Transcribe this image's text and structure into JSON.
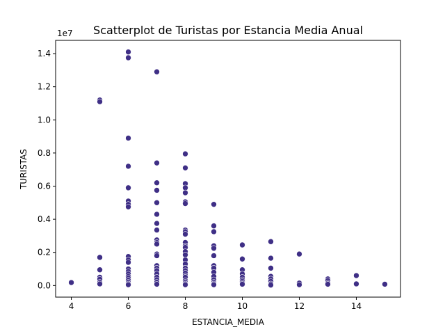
{
  "chart_data": {
    "type": "scatter",
    "title": "Scatterplot de Turistas por Estancia Media Anual",
    "xlabel": "ESTANCIA_MEDIA",
    "ylabel": "TURISTAS",
    "y_offset_label": "1e7",
    "xlim": [
      3.45,
      15.55
    ],
    "ylim": [
      -700000,
      14800000
    ],
    "x_ticks": [
      4,
      6,
      8,
      10,
      12,
      14
    ],
    "x_tick_labels": [
      "4",
      "6",
      "8",
      "10",
      "12",
      "14"
    ],
    "y_ticks": [
      0,
      2000000,
      4000000,
      6000000,
      8000000,
      10000000,
      12000000,
      14000000
    ],
    "y_tick_labels": [
      "0.0",
      "0.2",
      "0.4",
      "0.6",
      "0.8",
      "1.0",
      "1.2",
      "1.4"
    ],
    "grid": false,
    "marker_color": "#3f2f86",
    "marker_edge_color": "#ffffff",
    "points": [
      [
        4,
        180000
      ],
      [
        5,
        11200000
      ],
      [
        5,
        11100000
      ],
      [
        5,
        1700000
      ],
      [
        5,
        950000
      ],
      [
        5,
        500000
      ],
      [
        5,
        380000
      ],
      [
        5,
        200000
      ],
      [
        5,
        100000
      ],
      [
        6,
        14100000
      ],
      [
        6,
        13750000
      ],
      [
        6,
        8900000
      ],
      [
        6,
        7200000
      ],
      [
        6,
        5900000
      ],
      [
        6,
        5100000
      ],
      [
        6,
        4900000
      ],
      [
        6,
        4750000
      ],
      [
        6,
        1750000
      ],
      [
        6,
        1550000
      ],
      [
        6,
        1400000
      ],
      [
        6,
        1000000
      ],
      [
        6,
        850000
      ],
      [
        6,
        700000
      ],
      [
        6,
        550000
      ],
      [
        6,
        450000
      ],
      [
        6,
        320000
      ],
      [
        6,
        200000
      ],
      [
        6,
        100000
      ],
      [
        6,
        50000
      ],
      [
        7,
        12900000
      ],
      [
        7,
        7400000
      ],
      [
        7,
        6200000
      ],
      [
        7,
        5750000
      ],
      [
        7,
        5000000
      ],
      [
        7,
        4300000
      ],
      [
        7,
        3750000
      ],
      [
        7,
        3350000
      ],
      [
        7,
        2750000
      ],
      [
        7,
        2600000
      ],
      [
        7,
        2500000
      ],
      [
        7,
        1900000
      ],
      [
        7,
        1800000
      ],
      [
        7,
        1200000
      ],
      [
        7,
        1050000
      ],
      [
        7,
        900000
      ],
      [
        7,
        700000
      ],
      [
        7,
        500000
      ],
      [
        7,
        350000
      ],
      [
        7,
        200000
      ],
      [
        7,
        80000
      ],
      [
        8,
        7950000
      ],
      [
        8,
        7100000
      ],
      [
        8,
        6150000
      ],
      [
        8,
        5900000
      ],
      [
        8,
        5600000
      ],
      [
        8,
        5050000
      ],
      [
        8,
        4950000
      ],
      [
        8,
        3350000
      ],
      [
        8,
        3250000
      ],
      [
        8,
        3100000
      ],
      [
        8,
        2600000
      ],
      [
        8,
        2400000
      ],
      [
        8,
        2300000
      ],
      [
        8,
        2050000
      ],
      [
        8,
        1850000
      ],
      [
        8,
        1550000
      ],
      [
        8,
        1300000
      ],
      [
        8,
        1050000
      ],
      [
        8,
        900000
      ],
      [
        8,
        750000
      ],
      [
        8,
        600000
      ],
      [
        8,
        500000
      ],
      [
        8,
        300000
      ],
      [
        8,
        200000
      ],
      [
        8,
        100000
      ],
      [
        8,
        50000
      ],
      [
        9,
        4900000
      ],
      [
        9,
        3600000
      ],
      [
        9,
        3250000
      ],
      [
        9,
        2400000
      ],
      [
        9,
        2250000
      ],
      [
        9,
        1800000
      ],
      [
        9,
        1200000
      ],
      [
        9,
        1050000
      ],
      [
        9,
        800000
      ],
      [
        9,
        550000
      ],
      [
        9,
        350000
      ],
      [
        9,
        200000
      ],
      [
        9,
        100000
      ],
      [
        9,
        50000
      ],
      [
        10,
        2450000
      ],
      [
        10,
        1600000
      ],
      [
        10,
        950000
      ],
      [
        10,
        700000
      ],
      [
        10,
        500000
      ],
      [
        10,
        350000
      ],
      [
        10,
        250000
      ],
      [
        10,
        150000
      ],
      [
        10,
        80000
      ],
      [
        11,
        2650000
      ],
      [
        11,
        1650000
      ],
      [
        11,
        1050000
      ],
      [
        11,
        550000
      ],
      [
        11,
        400000
      ],
      [
        11,
        250000
      ],
      [
        11,
        100000
      ],
      [
        11,
        30000
      ],
      [
        12,
        1900000
      ],
      [
        12,
        150000
      ],
      [
        12,
        50000
      ],
      [
        13,
        400000
      ],
      [
        13,
        300000
      ],
      [
        13,
        150000
      ],
      [
        13,
        80000
      ],
      [
        14,
        600000
      ],
      [
        14,
        100000
      ],
      [
        15,
        80000
      ]
    ]
  }
}
